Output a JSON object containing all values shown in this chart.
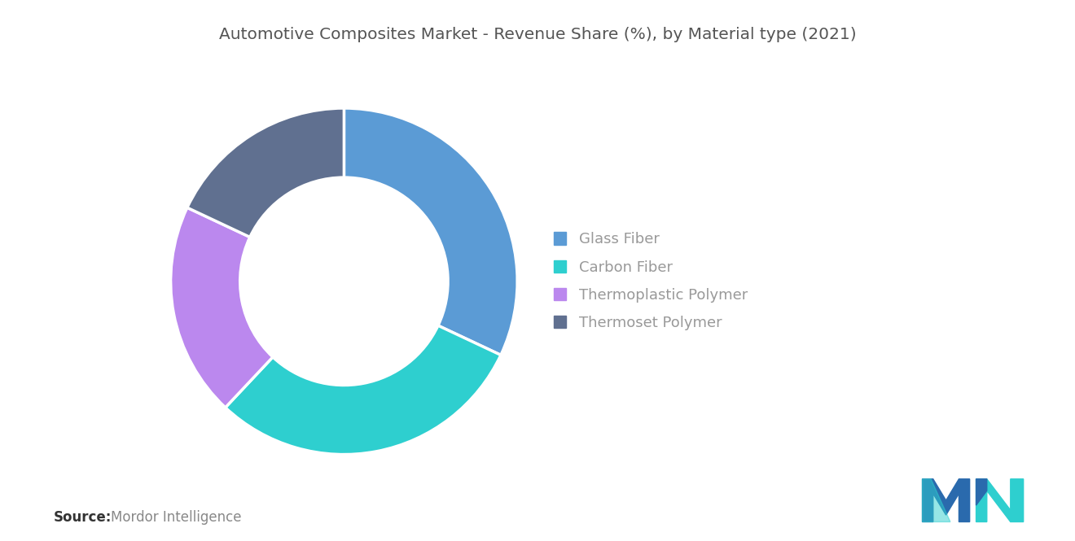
{
  "title": "Automotive Composites Market - Revenue Share (%), by Material type (2021)",
  "title_fontsize": 14.5,
  "title_color": "#555555",
  "slices": [
    {
      "label": "Glass Fiber",
      "value": 32,
      "color": "#5B9BD5"
    },
    {
      "label": "Carbon Fiber",
      "value": 30,
      "color": "#2ECFCF"
    },
    {
      "label": "Thermoplastic Polymer",
      "value": 20,
      "color": "#BB88EE"
    },
    {
      "label": "Thermoset Polymer",
      "value": 18,
      "color": "#607090"
    }
  ],
  "donut_width": 0.4,
  "legend_fontsize": 13,
  "legend_text_color": "#999999",
  "source_bold": "Source:",
  "source_text": "Mordor Intelligence",
  "source_fontsize": 12,
  "source_bold_color": "#333333",
  "source_text_color": "#888888",
  "background_color": "#FFFFFF",
  "start_angle": 90
}
